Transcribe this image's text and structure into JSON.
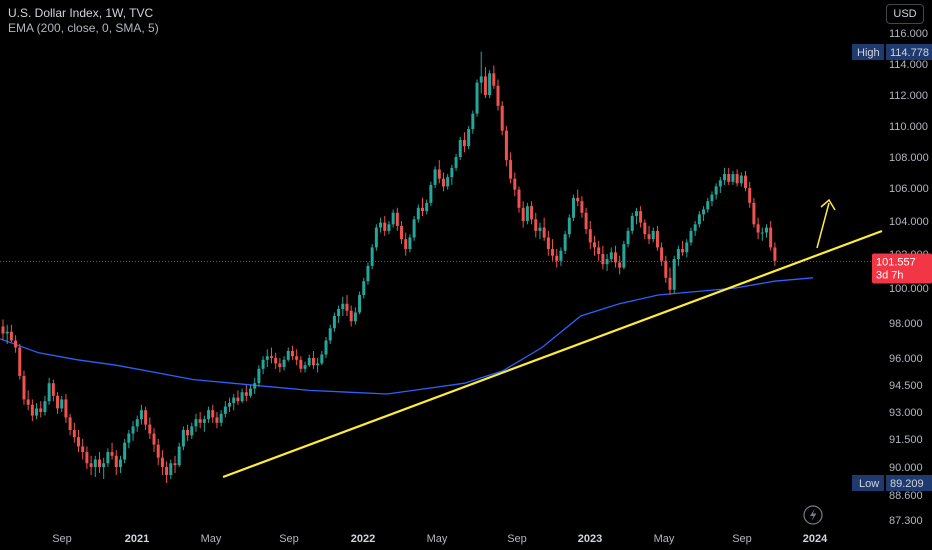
{
  "legend": {
    "title": "U.S. Dollar Index, 1W, TVC",
    "indicator": "EMA (200, close, 0, SMA, 5)"
  },
  "toolbar": {
    "currency_label": "USD"
  },
  "colors": {
    "up": "#26a69a",
    "down": "#ef5350",
    "ema": "#2962ff",
    "trendline": "#ffeb3b",
    "price_tag": "#f23645",
    "high_low_tag": "#1e3a6e"
  },
  "chart_data": {
    "type": "candlestick",
    "title": "U.S. Dollar Index, 1W, TVC",
    "indicator_name": "EMA (200, close, 0, SMA, 5)",
    "y_ticks": [
      "116.000",
      "114.000",
      "112.000",
      "110.000",
      "108.000",
      "106.000",
      "104.000",
      "102.000",
      "100.000",
      "98.000",
      "96.000",
      "94.500",
      "93.000",
      "91.500",
      "90.000",
      "88.600",
      "87.300"
    ],
    "x_ticks": [
      {
        "label": "Sep",
        "bold": false
      },
      {
        "label": "2021",
        "bold": true
      },
      {
        "label": "May",
        "bold": false
      },
      {
        "label": "Sep",
        "bold": false
      },
      {
        "label": "2022",
        "bold": true
      },
      {
        "label": "May",
        "bold": false
      },
      {
        "label": "Sep",
        "bold": false
      },
      {
        "label": "2023",
        "bold": true
      },
      {
        "label": "May",
        "bold": false
      },
      {
        "label": "Sep",
        "bold": false
      },
      {
        "label": "2024",
        "bold": true
      }
    ],
    "high": {
      "label": "High",
      "value": "114.778"
    },
    "low": {
      "label": "Low",
      "value": "89.209"
    },
    "last_price": {
      "value": "101.557",
      "countdown": "3d 7h"
    },
    "ema_points": [
      97.1,
      96.3,
      95.9,
      95.6,
      95.2,
      94.8,
      94.6,
      94.4,
      94.2,
      94.1,
      94.0,
      94.3,
      94.6,
      95.3,
      96.6,
      98.4,
      99.1,
      99.6,
      99.8,
      100.0,
      100.4,
      100.6
    ],
    "candles": [
      [
        97.8,
        98.2,
        97.0,
        97.4
      ],
      [
        97.4,
        97.9,
        96.8,
        97.5
      ],
      [
        97.5,
        97.9,
        96.9,
        97.0
      ],
      [
        97.0,
        97.3,
        96.3,
        96.6
      ],
      [
        96.6,
        96.8,
        94.8,
        95.0
      ],
      [
        95.0,
        95.3,
        93.4,
        93.7
      ],
      [
        93.7,
        94.2,
        93.1,
        93.4
      ],
      [
        93.4,
        93.7,
        92.5,
        92.8
      ],
      [
        92.8,
        93.5,
        92.6,
        93.2
      ],
      [
        93.2,
        93.6,
        92.7,
        93.0
      ],
      [
        93.0,
        93.9,
        92.8,
        93.6
      ],
      [
        93.6,
        94.9,
        93.4,
        94.6
      ],
      [
        94.6,
        94.8,
        93.6,
        93.9
      ],
      [
        93.9,
        94.1,
        92.9,
        93.2
      ],
      [
        93.2,
        93.9,
        93.0,
        93.7
      ],
      [
        93.7,
        94.0,
        92.4,
        92.7
      ],
      [
        92.7,
        92.9,
        91.7,
        92.0
      ],
      [
        92.0,
        92.4,
        91.3,
        91.6
      ],
      [
        91.6,
        92.0,
        90.8,
        91.1
      ],
      [
        91.1,
        91.5,
        90.4,
        90.8
      ],
      [
        90.8,
        91.1,
        89.9,
        90.2
      ],
      [
        90.2,
        90.6,
        89.6,
        90.0
      ],
      [
        90.0,
        90.6,
        89.5,
        90.4
      ],
      [
        90.4,
        90.8,
        89.7,
        90.0
      ],
      [
        90.0,
        90.5,
        89.4,
        90.2
      ],
      [
        90.2,
        91.0,
        90.0,
        90.8
      ],
      [
        90.8,
        91.3,
        90.4,
        90.6
      ],
      [
        90.6,
        90.9,
        89.6,
        90.0
      ],
      [
        90.0,
        90.6,
        89.7,
        90.4
      ],
      [
        90.4,
        91.5,
        90.2,
        91.3
      ],
      [
        91.3,
        92.0,
        91.0,
        91.8
      ],
      [
        91.8,
        92.5,
        91.4,
        92.2
      ],
      [
        92.2,
        92.8,
        91.9,
        92.6
      ],
      [
        92.6,
        93.4,
        92.3,
        93.1
      ],
      [
        93.1,
        93.3,
        92.0,
        92.3
      ],
      [
        92.3,
        92.7,
        91.5,
        91.8
      ],
      [
        91.8,
        92.1,
        90.8,
        91.2
      ],
      [
        91.2,
        91.5,
        90.1,
        90.5
      ],
      [
        90.5,
        90.9,
        89.6,
        90.0
      ],
      [
        90.0,
        90.3,
        89.2,
        89.6
      ],
      [
        89.6,
        90.4,
        89.4,
        90.2
      ],
      [
        90.2,
        90.6,
        89.7,
        90.1
      ],
      [
        90.1,
        91.3,
        90.0,
        91.1
      ],
      [
        91.1,
        92.2,
        90.9,
        92.0
      ],
      [
        92.0,
        92.3,
        91.4,
        91.7
      ],
      [
        91.7,
        92.4,
        91.5,
        92.2
      ],
      [
        92.2,
        92.9,
        91.9,
        92.6
      ],
      [
        92.6,
        93.0,
        92.1,
        92.4
      ],
      [
        92.4,
        92.8,
        91.9,
        92.6
      ],
      [
        92.6,
        93.3,
        92.4,
        93.1
      ],
      [
        93.1,
        93.4,
        92.4,
        92.7
      ],
      [
        92.7,
        93.0,
        92.1,
        92.4
      ],
      [
        92.4,
        93.1,
        92.2,
        92.9
      ],
      [
        92.9,
        93.6,
        92.7,
        93.3
      ],
      [
        93.3,
        93.8,
        93.0,
        93.5
      ],
      [
        93.5,
        94.0,
        93.1,
        93.8
      ],
      [
        93.8,
        94.2,
        93.4,
        93.6
      ],
      [
        93.6,
        94.3,
        93.5,
        94.1
      ],
      [
        94.1,
        94.5,
        93.6,
        93.9
      ],
      [
        93.9,
        94.5,
        93.8,
        94.3
      ],
      [
        94.3,
        94.9,
        94.0,
        94.6
      ],
      [
        94.6,
        95.6,
        94.4,
        95.4
      ],
      [
        95.4,
        96.1,
        95.1,
        95.9
      ],
      [
        95.9,
        96.5,
        95.5,
        96.1
      ],
      [
        96.1,
        96.6,
        95.7,
        96.0
      ],
      [
        96.0,
        96.3,
        95.4,
        95.7
      ],
      [
        95.7,
        96.0,
        95.2,
        95.5
      ],
      [
        95.5,
        96.1,
        95.3,
        95.9
      ],
      [
        95.9,
        96.6,
        95.8,
        96.4
      ],
      [
        96.4,
        96.7,
        95.9,
        96.1
      ],
      [
        96.1,
        96.5,
        95.6,
        95.9
      ],
      [
        95.9,
        96.1,
        95.2,
        95.4
      ],
      [
        95.4,
        95.8,
        95.2,
        95.6
      ],
      [
        95.6,
        96.2,
        95.5,
        96.0
      ],
      [
        96.0,
        96.4,
        95.4,
        95.6
      ],
      [
        95.6,
        96.0,
        95.2,
        95.7
      ],
      [
        95.7,
        96.4,
        95.6,
        96.2
      ],
      [
        96.2,
        97.2,
        96.0,
        97.0
      ],
      [
        97.0,
        97.9,
        96.8,
        97.7
      ],
      [
        97.7,
        98.6,
        97.5,
        98.4
      ],
      [
        98.4,
        99.0,
        98.0,
        98.8
      ],
      [
        98.8,
        99.5,
        98.4,
        99.1
      ],
      [
        99.1,
        99.6,
        98.4,
        98.7
      ],
      [
        98.7,
        99.0,
        97.8,
        98.1
      ],
      [
        98.1,
        98.9,
        97.9,
        98.6
      ],
      [
        98.6,
        99.8,
        98.5,
        99.6
      ],
      [
        99.6,
        100.6,
        99.4,
        100.4
      ],
      [
        100.4,
        101.5,
        100.2,
        101.3
      ],
      [
        101.3,
        102.6,
        101.1,
        102.4
      ],
      [
        102.4,
        103.8,
        102.2,
        103.6
      ],
      [
        103.6,
        104.2,
        103.3,
        103.9
      ],
      [
        103.9,
        104.3,
        103.1,
        103.4
      ],
      [
        103.4,
        104.0,
        103.2,
        103.8
      ],
      [
        103.8,
        104.7,
        103.6,
        104.5
      ],
      [
        104.5,
        104.8,
        103.4,
        103.7
      ],
      [
        103.7,
        104.0,
        102.6,
        102.9
      ],
      [
        102.9,
        103.3,
        101.9,
        102.3
      ],
      [
        102.3,
        103.2,
        102.1,
        103.0
      ],
      [
        103.0,
        104.3,
        102.8,
        104.1
      ],
      [
        104.1,
        105.0,
        103.9,
        104.8
      ],
      [
        104.8,
        105.4,
        104.3,
        104.6
      ],
      [
        104.6,
        105.3,
        104.4,
        105.1
      ],
      [
        105.1,
        106.4,
        104.9,
        106.2
      ],
      [
        106.2,
        107.4,
        106.0,
        107.2
      ],
      [
        107.2,
        107.8,
        106.3,
        106.6
      ],
      [
        106.6,
        107.0,
        105.8,
        106.1
      ],
      [
        106.1,
        106.9,
        105.9,
        106.7
      ],
      [
        106.7,
        107.5,
        106.2,
        107.3
      ],
      [
        107.3,
        108.2,
        107.1,
        108.0
      ],
      [
        108.0,
        109.3,
        107.8,
        109.1
      ],
      [
        109.1,
        109.6,
        108.3,
        108.7
      ],
      [
        108.7,
        110.0,
        108.5,
        109.8
      ],
      [
        109.8,
        111.0,
        109.5,
        110.8
      ],
      [
        110.8,
        113.0,
        110.6,
        112.8
      ],
      [
        112.8,
        114.8,
        112.1,
        113.2
      ],
      [
        113.2,
        113.8,
        111.8,
        112.0
      ],
      [
        112.0,
        113.6,
        111.8,
        113.4
      ],
      [
        113.4,
        113.9,
        112.4,
        112.6
      ],
      [
        112.6,
        113.0,
        111.0,
        111.3
      ],
      [
        111.3,
        111.6,
        109.4,
        109.7
      ],
      [
        109.7,
        110.0,
        107.4,
        107.8
      ],
      [
        107.8,
        108.3,
        106.3,
        106.6
      ],
      [
        106.6,
        107.0,
        105.5,
        105.9
      ],
      [
        105.9,
        106.1,
        104.5,
        104.8
      ],
      [
        104.8,
        105.2,
        103.6,
        104.0
      ],
      [
        104.0,
        105.1,
        103.8,
        104.9
      ],
      [
        104.9,
        105.2,
        103.8,
        104.1
      ],
      [
        104.1,
        104.5,
        103.0,
        103.4
      ],
      [
        103.4,
        103.9,
        102.9,
        103.6
      ],
      [
        103.6,
        104.2,
        102.8,
        103.0
      ],
      [
        103.0,
        103.4,
        101.9,
        102.3
      ],
      [
        102.3,
        102.9,
        101.6,
        101.9
      ],
      [
        101.9,
        102.3,
        101.2,
        101.6
      ],
      [
        101.6,
        102.4,
        101.3,
        102.2
      ],
      [
        102.2,
        103.4,
        102.0,
        103.2
      ],
      [
        103.2,
        104.4,
        103.0,
        104.2
      ],
      [
        104.2,
        105.6,
        104.0,
        105.4
      ],
      [
        105.4,
        105.9,
        104.9,
        105.2
      ],
      [
        105.2,
        105.5,
        104.2,
        104.5
      ],
      [
        104.5,
        104.8,
        103.2,
        103.5
      ],
      [
        103.5,
        104.0,
        102.3,
        102.7
      ],
      [
        102.7,
        103.1,
        101.9,
        102.4
      ],
      [
        102.4,
        102.8,
        101.6,
        102.0
      ],
      [
        102.0,
        102.5,
        101.1,
        101.4
      ],
      [
        101.4,
        102.0,
        101.0,
        101.7
      ],
      [
        101.7,
        102.4,
        101.5,
        102.1
      ],
      [
        102.1,
        102.5,
        101.2,
        101.5
      ],
      [
        101.5,
        101.9,
        100.8,
        101.2
      ],
      [
        101.2,
        102.8,
        101.1,
        102.6
      ],
      [
        102.6,
        103.6,
        102.4,
        103.4
      ],
      [
        103.4,
        104.5,
        103.2,
        104.3
      ],
      [
        104.3,
        104.8,
        103.8,
        104.6
      ],
      [
        104.6,
        104.9,
        103.6,
        103.9
      ],
      [
        103.9,
        104.1,
        102.9,
        103.2
      ],
      [
        103.2,
        103.7,
        102.6,
        102.9
      ],
      [
        102.9,
        103.6,
        102.7,
        103.4
      ],
      [
        103.4,
        103.7,
        102.2,
        102.4
      ],
      [
        102.4,
        102.7,
        101.3,
        101.6
      ],
      [
        101.6,
        101.9,
        100.3,
        100.6
      ],
      [
        100.6,
        101.2,
        99.6,
        99.9
      ],
      [
        99.9,
        101.9,
        99.7,
        101.7
      ],
      [
        101.7,
        102.5,
        101.3,
        102.3
      ],
      [
        102.3,
        102.8,
        101.9,
        102.1
      ],
      [
        102.1,
        102.9,
        101.8,
        102.7
      ],
      [
        102.7,
        103.6,
        102.5,
        103.4
      ],
      [
        103.4,
        104.0,
        103.1,
        103.8
      ],
      [
        103.8,
        104.6,
        103.6,
        104.4
      ],
      [
        104.4,
        104.9,
        104.0,
        104.7
      ],
      [
        104.7,
        105.4,
        104.5,
        105.2
      ],
      [
        105.2,
        105.8,
        104.9,
        105.6
      ],
      [
        105.6,
        106.3,
        105.3,
        106.1
      ],
      [
        106.1,
        106.7,
        105.7,
        106.5
      ],
      [
        106.5,
        107.3,
        106.2,
        106.9
      ],
      [
        106.9,
        107.3,
        106.2,
        106.4
      ],
      [
        106.4,
        107.1,
        106.2,
        106.9
      ],
      [
        106.9,
        107.2,
        106.1,
        106.3
      ],
      [
        106.3,
        107.0,
        106.1,
        106.8
      ],
      [
        106.8,
        107.1,
        105.8,
        106.0
      ],
      [
        106.0,
        106.4,
        104.8,
        105.1
      ],
      [
        105.1,
        105.4,
        103.6,
        103.8
      ],
      [
        103.8,
        104.2,
        102.9,
        103.3
      ],
      [
        103.3,
        103.6,
        102.8,
        103.3
      ],
      [
        103.3,
        103.8,
        103.0,
        103.6
      ],
      [
        103.6,
        104.0,
        102.2,
        102.4
      ],
      [
        102.4,
        102.7,
        101.3,
        101.6
      ]
    ]
  }
}
